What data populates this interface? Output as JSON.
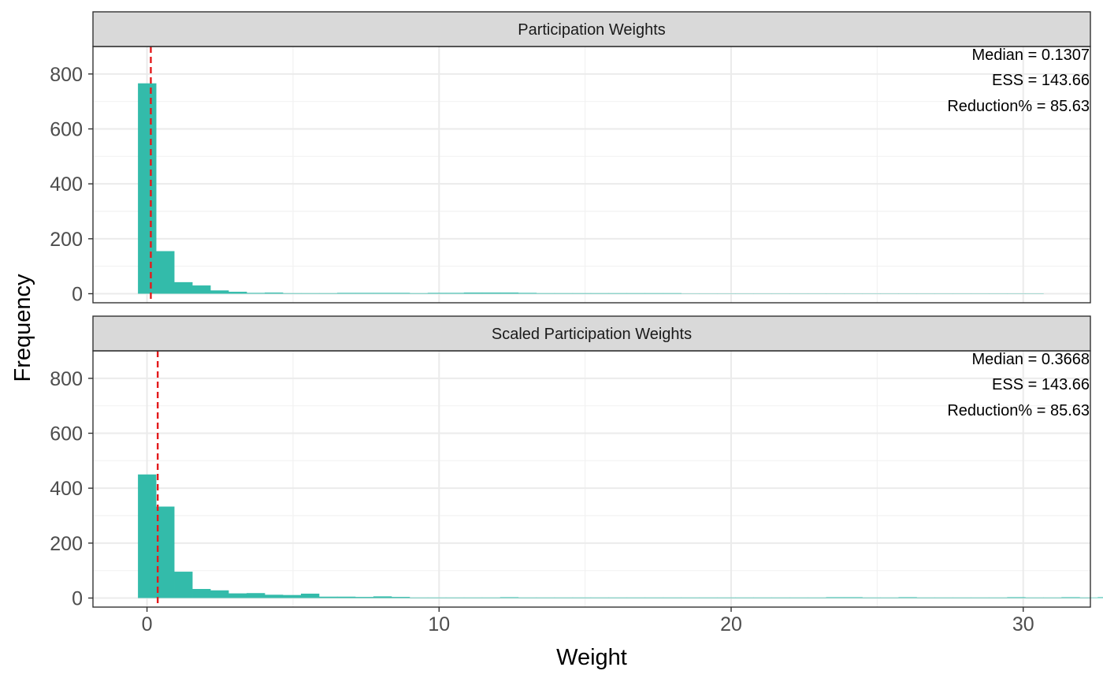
{
  "chart_data": {
    "type": "bar",
    "xlabel": "Weight",
    "ylabel": "Frequency",
    "xlim": [
      -1.85,
      32.3
    ],
    "ylim": [
      -33,
      900
    ],
    "x_ticks": [
      0,
      10,
      20,
      30
    ],
    "y_ticks": [
      0,
      200,
      400,
      600,
      800
    ],
    "grid": true,
    "bin_width": 0.62,
    "bin_start": -0.31,
    "bar_color": "#33BBAA",
    "median_line_color": "#E41A1C",
    "panels": [
      {
        "title": "Participation Weights",
        "median": 0.1307,
        "annotations": [
          "Median = 0.1307",
          "ESS = 143.66",
          "Reduction% = 85.63"
        ],
        "counts": [
          766,
          155,
          42,
          30,
          12,
          7,
          3,
          4,
          2,
          2,
          2,
          3,
          3,
          3,
          3,
          2,
          3,
          3,
          4,
          4,
          4,
          3,
          2,
          2,
          2,
          2,
          2,
          2,
          2,
          2,
          1,
          1,
          1,
          1,
          1,
          1,
          1,
          1,
          1,
          1,
          1,
          1,
          1,
          1,
          1,
          1,
          1,
          1,
          1,
          1
        ]
      },
      {
        "title": "Scaled Participation Weights",
        "median": 0.3668,
        "annotations": [
          "Median = 0.3668",
          "ESS = 143.66",
          "Reduction% = 85.63"
        ],
        "counts": [
          450,
          333,
          96,
          33,
          28,
          17,
          18,
          12,
          11,
          16,
          5,
          5,
          4,
          6,
          4,
          2,
          2,
          2,
          2,
          2,
          3,
          2,
          2,
          2,
          2,
          2,
          2,
          2,
          2,
          2,
          2,
          2,
          2,
          2,
          2,
          2,
          2,
          2,
          3,
          3,
          2,
          2,
          3,
          2,
          2,
          2,
          2,
          2,
          3,
          2,
          2,
          3,
          2,
          3,
          2,
          3,
          2,
          3
        ]
      }
    ]
  }
}
